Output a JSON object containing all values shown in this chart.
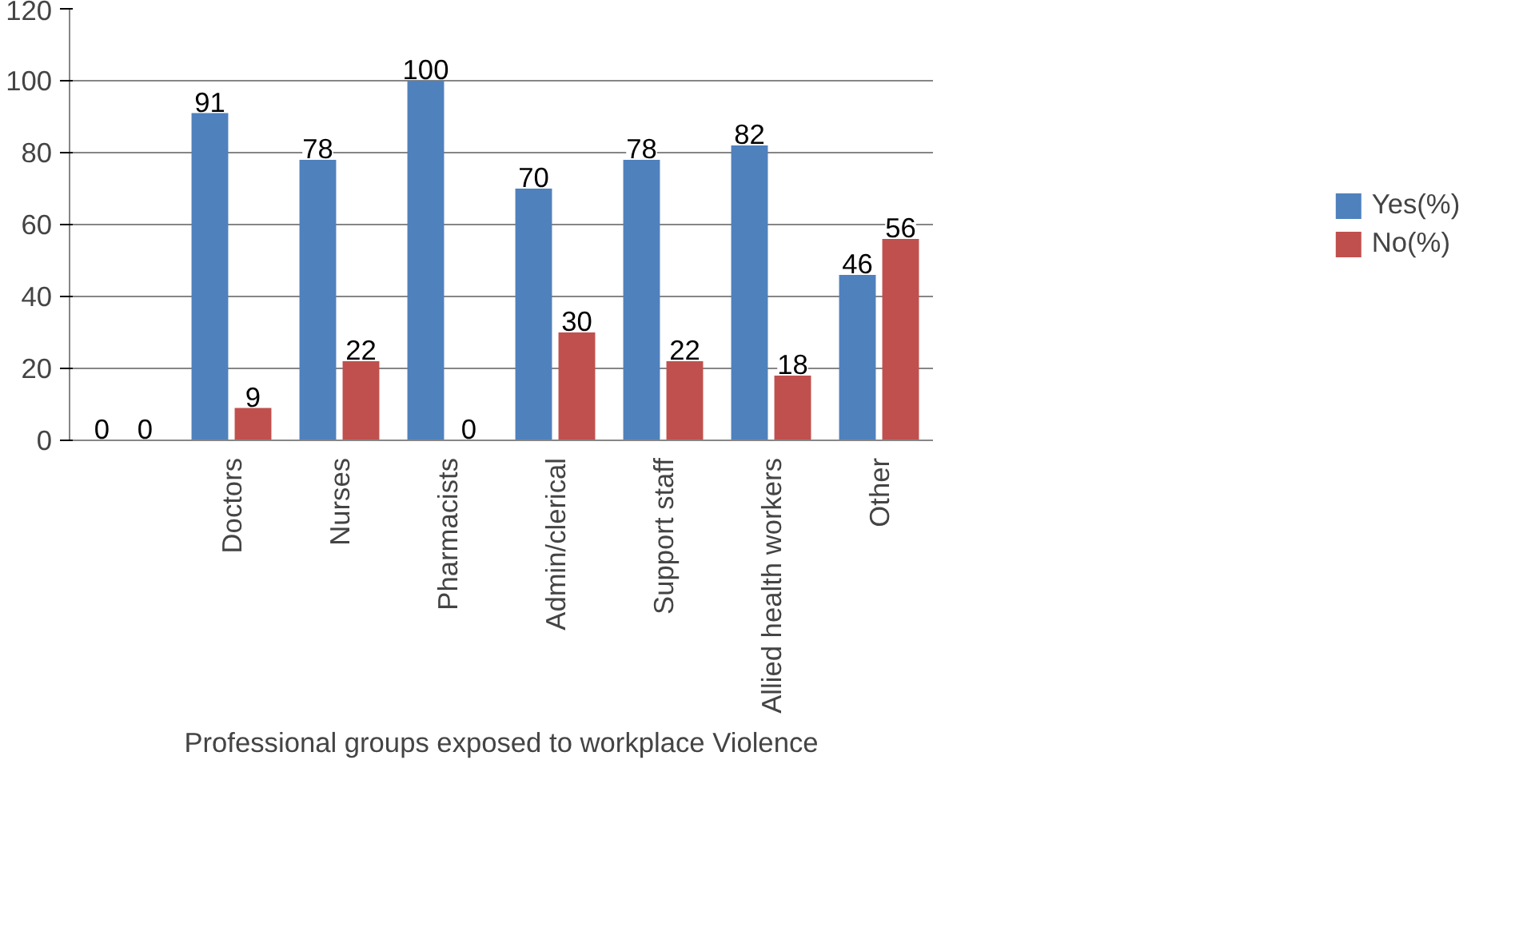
{
  "chart_data": {
    "type": "bar",
    "xlabel": "Professional groups exposed to workplace Violence",
    "categories": [
      null,
      "Doctors",
      "Nurses",
      "Pharmacists",
      "Admin/clerical",
      "Support staff",
      "Allied health workers",
      "Other"
    ],
    "series": [
      {
        "name": "Yes(%)",
        "color": "#4f81bd",
        "values": [
          0,
          91,
          78,
          100,
          70,
          78,
          82,
          46
        ]
      },
      {
        "name": "No(%)",
        "color": "#c0504d",
        "values": [
          0,
          9,
          22,
          0,
          30,
          22,
          18,
          56
        ]
      }
    ],
    "ylim": [
      0,
      120
    ],
    "yticks": [
      0,
      20,
      40,
      60,
      80,
      100,
      120
    ],
    "grid": "y",
    "legend": "right",
    "data_labels": true
  }
}
